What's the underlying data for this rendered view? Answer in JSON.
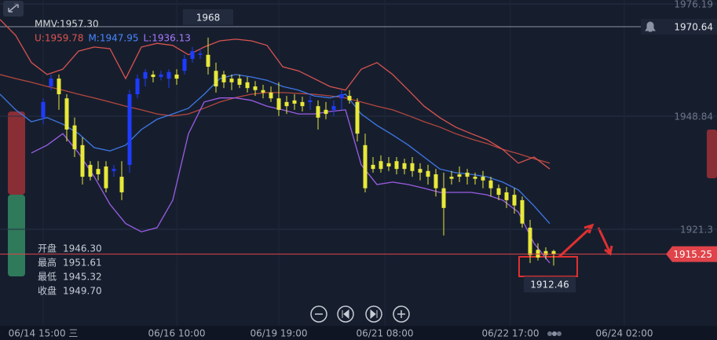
{
  "chart_data": {
    "type": "candlestick",
    "ylim": [
      1897.78,
      1977.15
    ],
    "yticks": [
      1976.19,
      1948.84,
      1921.3
    ],
    "grid": true,
    "xticks": [
      {
        "value": 0,
        "label": "06/14 15:00 三"
      },
      {
        "value": 17,
        "label": "06/16 10:00"
      },
      {
        "value": 30,
        "label": "06/19 19:00"
      },
      {
        "value": 43.5,
        "label": "06/21 08:00"
      },
      {
        "value": 59.5,
        "label": "06/22 17:00"
      },
      {
        "value": 74,
        "label": "06/24 02:00"
      }
    ],
    "up_color": "#1e3cff",
    "down_color": "#e8e83a",
    "candles": {
      "open": [
        1948.5,
        1956.1,
        1958.0,
        1953.2,
        1946.6,
        1941.8,
        1937.0,
        1936.0,
        1936.6,
        1935.5,
        1934.1,
        1937.0,
        1954.2,
        1958.0,
        1959.0,
        1958.4,
        1958.0,
        1959.0,
        1959.9,
        1962.8,
        1963.8,
        1963.8,
        1959.9,
        1959.0,
        1958.0,
        1958.0,
        1957.1,
        1956.1,
        1955.2,
        1954.6,
        1953.2,
        1952.3,
        1952.7,
        1952.3,
        1952.3,
        1951.3,
        1950.4,
        1950.4,
        1953.2,
        1953.8,
        1952.3,
        1941.8,
        1937.0,
        1937.9,
        1937.4,
        1937.9,
        1937.4,
        1937.4,
        1936.0,
        1935.5,
        1934.7,
        1931.3,
        1934.1,
        1934.7,
        1935.1,
        1934.1,
        1934.1,
        1933.2,
        1931.3,
        1930.3,
        1929.7,
        1928.4,
        1921.7,
        1916.3,
        1916.0,
        1916.0
      ],
      "high": [
        1953.2,
        1959.0,
        1959.0,
        1954.2,
        1948.5,
        1943.7,
        1937.9,
        1937.9,
        1937.9,
        1937.0,
        1937.9,
        1955.2,
        1959.0,
        1960.3,
        1959.9,
        1959.9,
        1960.3,
        1960.3,
        1963.8,
        1965.7,
        1965.3,
        1968.0,
        1961.9,
        1959.9,
        1959.0,
        1959.0,
        1958.4,
        1957.4,
        1956.5,
        1956.1,
        1957.1,
        1953.8,
        1954.2,
        1953.6,
        1953.8,
        1952.7,
        1952.3,
        1952.7,
        1955.2,
        1955.2,
        1953.2,
        1944.6,
        1938.9,
        1939.3,
        1938.9,
        1938.9,
        1938.5,
        1938.9,
        1937.4,
        1937.0,
        1936.0,
        1935.1,
        1935.5,
        1936.6,
        1936.0,
        1935.1,
        1935.5,
        1934.1,
        1932.2,
        1931.6,
        1931.3,
        1929.3,
        1923.6,
        1917.9,
        1916.9,
        1916.3
      ],
      "low": [
        1946.9,
        1955.2,
        1950.4,
        1942.7,
        1938.9,
        1932.2,
        1933.2,
        1933.2,
        1930.3,
        1934.1,
        1928.4,
        1935.1,
        1953.2,
        1956.1,
        1957.1,
        1957.6,
        1955.7,
        1956.5,
        1959.0,
        1961.9,
        1962.8,
        1959.0,
        1954.6,
        1955.7,
        1955.2,
        1955.7,
        1954.6,
        1953.8,
        1953.2,
        1952.3,
        1948.9,
        1949.4,
        1950.4,
        1950.0,
        1950.4,
        1945.6,
        1948.1,
        1948.9,
        1950.4,
        1951.9,
        1942.7,
        1930.3,
        1935.1,
        1935.1,
        1935.5,
        1934.7,
        1934.7,
        1934.1,
        1933.2,
        1932.2,
        1929.3,
        1919.8,
        1932.2,
        1932.8,
        1932.2,
        1932.2,
        1931.3,
        1929.3,
        1928.4,
        1926.5,
        1925.1,
        1921.7,
        1913.1,
        1913.7,
        1914.0,
        1912.46
      ],
      "close": [
        1952.3,
        1958.0,
        1954.2,
        1945.6,
        1940.8,
        1934.1,
        1934.1,
        1934.7,
        1931.3,
        1936.0,
        1930.3,
        1954.2,
        1958.0,
        1959.6,
        1958.4,
        1959.0,
        1959.6,
        1958.0,
        1962.8,
        1964.7,
        1964.1,
        1960.9,
        1956.1,
        1957.1,
        1957.1,
        1956.5,
        1955.7,
        1955.2,
        1954.6,
        1953.2,
        1950.4,
        1951.3,
        1951.9,
        1951.3,
        1952.7,
        1948.5,
        1949.4,
        1951.3,
        1954.2,
        1952.7,
        1944.6,
        1931.3,
        1936.0,
        1936.0,
        1936.6,
        1936.0,
        1936.0,
        1935.5,
        1935.1,
        1934.1,
        1931.3,
        1926.5,
        1933.6,
        1934.1,
        1934.1,
        1933.6,
        1933.2,
        1931.3,
        1929.7,
        1928.4,
        1927.1,
        1922.7,
        1915.0,
        1914.4,
        1915.0,
        1915.25
      ]
    },
    "series": [
      {
        "name": "MMV:1957.30",
        "color": "#b5473d",
        "label_color": "#d8d8d8",
        "values": [
          1959.0,
          1958.0,
          1957.1,
          1956.1,
          1955.2,
          1954.2,
          1953.3,
          1952.3,
          1951.3,
          1950.4,
          1949.4,
          1948.9,
          1949.4,
          1950.8,
          1952.3,
          1953.4,
          1954.2,
          1954.6,
          1954.6,
          1954.4,
          1954.2,
          1953.8,
          1953.3,
          1952.3,
          1951.3,
          1950.4,
          1949.0,
          1947.5,
          1946.2,
          1944.6,
          1943.3,
          1942.2,
          1940.8,
          1939.7,
          1938.5,
          1937.4
        ]
      },
      {
        "name": "U:1959.78",
        "color": "#d9534f",
        "label_color": "#e0544f",
        "values": [
          1972.4,
          1968.5,
          1961.9,
          1959.0,
          1960.3,
          1964.7,
          1965.7,
          1965.3,
          1958.0,
          1965.7,
          1966.6,
          1966.1,
          1963.8,
          1965.7,
          1967.2,
          1967.6,
          1967.2,
          1966.1,
          1960.9,
          1959.9,
          1958.0,
          1956.1,
          1955.2,
          1960.3,
          1961.9,
          1959.0,
          1955.2,
          1951.3,
          1948.5,
          1946.2,
          1944.6,
          1943.1,
          1940.8,
          1937.4,
          1938.9,
          1936.0
        ]
      },
      {
        "name": "M:1947.95",
        "color": "#3f78e6",
        "label_color": "#4a86ff",
        "values": [
          1954.2,
          1950.4,
          1947.5,
          1948.5,
          1946.9,
          1944.6,
          1941.2,
          1940.4,
          1941.8,
          1945.6,
          1948.1,
          1949.4,
          1950.8,
          1954.2,
          1958.0,
          1959.0,
          1958.4,
          1957.6,
          1956.1,
          1955.2,
          1953.8,
          1953.3,
          1954.2,
          1949.4,
          1946.6,
          1944.3,
          1941.8,
          1938.9,
          1936.0,
          1935.1,
          1934.7,
          1934.1,
          1932.8,
          1930.9,
          1927.0,
          1922.7
        ]
      },
      {
        "name": "L:1936.13",
        "color": "#9b5de5",
        "label_color": "#a878ff",
        "values": [
          null,
          null,
          1939.9,
          1941.8,
          1944.6,
          1939.9,
          1934.1,
          1927.4,
          1922.7,
          1920.7,
          1921.7,
          1928.4,
          1944.6,
          1952.3,
          1953.3,
          1953.3,
          1952.7,
          1951.3,
          1950.4,
          1949.4,
          1949.4,
          1950.0,
          1950.4,
          1937.0,
          1932.2,
          1932.8,
          1932.2,
          1931.3,
          1930.3,
          1930.3,
          1930.3,
          1929.7,
          1928.4,
          1925.5,
          1917.9,
          1913.1
        ]
      }
    ],
    "alert_price": 1970.64,
    "info": [
      [
        "开盘",
        "1946.30"
      ],
      [
        "最高",
        "1951.61"
      ],
      [
        "最低",
        "1945.32"
      ],
      [
        "收盘",
        "1949.70"
      ]
    ]
  }
}
